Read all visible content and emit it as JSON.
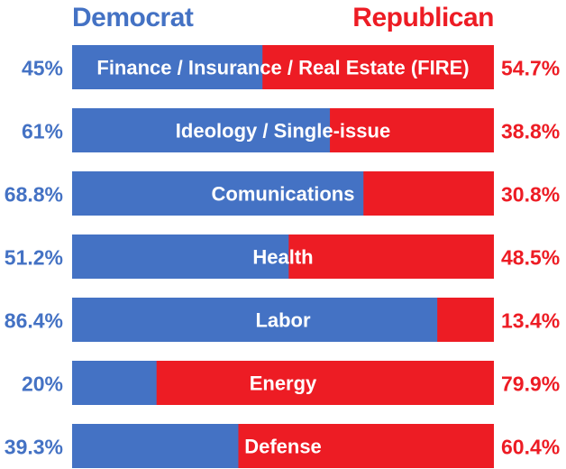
{
  "legend": {
    "dem_label": "Democrat",
    "rep_label": "Republican"
  },
  "colors": {
    "democrat": "#4472c4",
    "republican": "#ed1c24",
    "bar_text": "#ffffff"
  },
  "chart_data": {
    "type": "bar",
    "orientation": "horizontal",
    "stacked": true,
    "categories": [
      "Finance / Insurance / Real Estate (FIRE)",
      "Ideology / Single-issue",
      "Comunications",
      "Health",
      "Labor",
      "Energy",
      "Defense"
    ],
    "series": [
      {
        "name": "Democrat",
        "values": [
          45,
          61,
          68.8,
          51.2,
          86.4,
          20,
          39.3
        ],
        "labels": [
          "45%",
          "61%",
          "68.8%",
          "51.2%",
          "86.4%",
          "20%",
          "39.3%"
        ]
      },
      {
        "name": "Republican",
        "values": [
          54.7,
          38.8,
          30.8,
          48.5,
          13.4,
          79.9,
          60.4
        ],
        "labels": [
          "54.7%",
          "38.8%",
          "30.8%",
          "48.5%",
          "13.4%",
          "79.9%",
          "60.4%"
        ]
      }
    ],
    "xlim": [
      0,
      100
    ],
    "legend_position": "top",
    "grid": false
  }
}
